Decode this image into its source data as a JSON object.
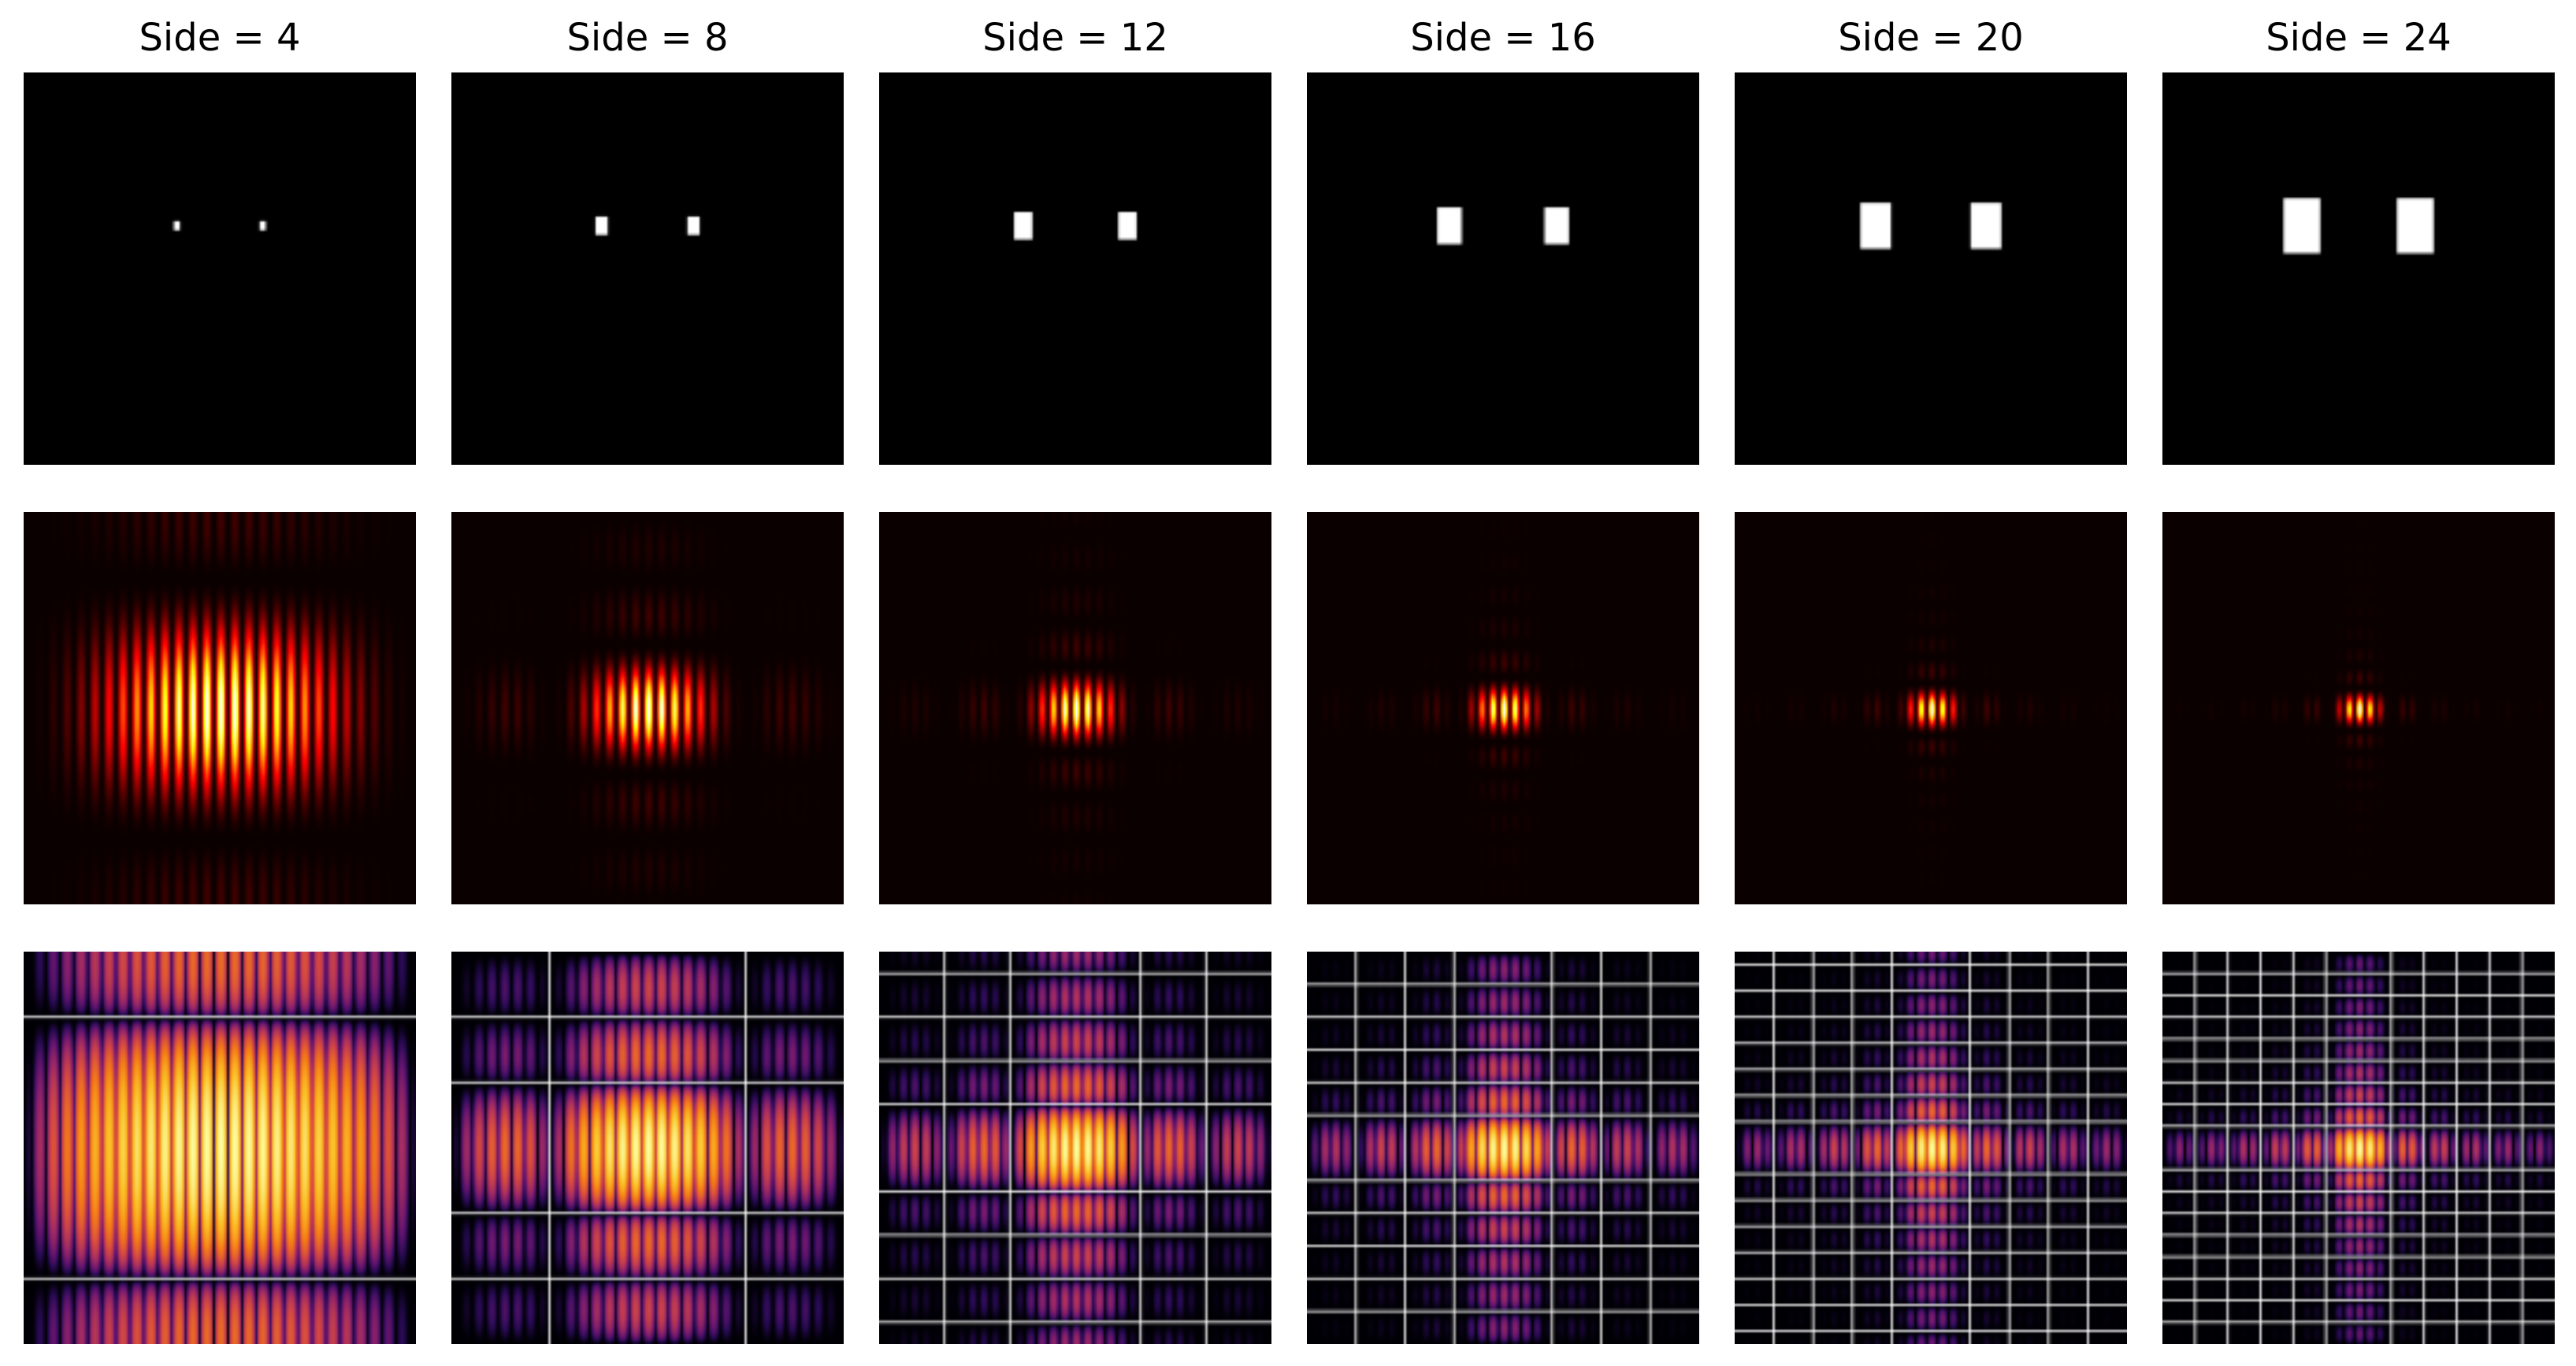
{
  "figure": {
    "columns": [
      {
        "title": "Side = 4",
        "side": 4
      },
      {
        "title": "Side = 8",
        "side": 8
      },
      {
        "title": "Side = 12",
        "side": 12
      },
      {
        "title": "Side = 16",
        "side": 16
      },
      {
        "title": "Side = 20",
        "side": 20
      },
      {
        "title": "Side = 24",
        "side": 24
      }
    ],
    "rows": [
      "aperture",
      "diffraction-intensity",
      "log-diffraction-intensity"
    ]
  },
  "chart_data": [
    {
      "type": "heatmap",
      "title": "",
      "description_rows": [
        "two-square aperture (binary)",
        "Fourier intensity (hot colormap)",
        "log Fourier intensity (inferno colormap)"
      ],
      "panel_titles": [
        "Side = 4",
        "Side = 8",
        "Side = 12",
        "Side = 16",
        "Side = 20",
        "Side = 24"
      ],
      "side_values": [
        4,
        8,
        12,
        16,
        20,
        24
      ],
      "colormaps": {
        "aperture": "gray",
        "intensity": "hot",
        "log_intensity": "inferno"
      },
      "axes_visible": false
    }
  ]
}
